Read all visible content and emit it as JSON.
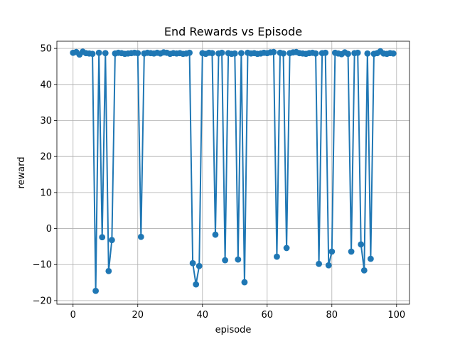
{
  "chart_data": {
    "type": "line",
    "title": "End Rewards vs Episode",
    "xlabel": "episode",
    "ylabel": "reward",
    "xlim": [
      -5,
      104
    ],
    "ylim": [
      -21,
      52
    ],
    "xticks": [
      0,
      20,
      40,
      60,
      80,
      100
    ],
    "yticks": [
      -20,
      -10,
      0,
      10,
      20,
      30,
      40,
      50
    ],
    "xtick_labels": [
      "0",
      "20",
      "40",
      "60",
      "80",
      "100"
    ],
    "ytick_labels": [
      "−20",
      "−10",
      "0",
      "10",
      "20",
      "30",
      "40",
      "50"
    ],
    "grid": true,
    "markers": true,
    "color": "#1f77b4",
    "series": [
      {
        "x": [
          0,
          1,
          2,
          3,
          4,
          5,
          6,
          7,
          8,
          9,
          10,
          11,
          12,
          13,
          14,
          15,
          16,
          17,
          18,
          19,
          20,
          21,
          22,
          23,
          24,
          25,
          26,
          27,
          28,
          29,
          30,
          31,
          32,
          33,
          34,
          35,
          36,
          37,
          38,
          39,
          40,
          41,
          42,
          43,
          44,
          45,
          46,
          47,
          48,
          49,
          50,
          51,
          52,
          53,
          54,
          55,
          56,
          57,
          58,
          59,
          60,
          61,
          62,
          63,
          64,
          65,
          66,
          67,
          68,
          69,
          70,
          71,
          72,
          73,
          74,
          75,
          76,
          77,
          78,
          79,
          80,
          81,
          82,
          83,
          84,
          85,
          86,
          87,
          88,
          89,
          90,
          91,
          92,
          93,
          94,
          95,
          96,
          97,
          98,
          99
        ],
        "y": [
          48.8,
          49.0,
          48.3,
          49.1,
          48.7,
          48.6,
          48.5,
          -17.3,
          48.8,
          -2.4,
          48.7,
          -11.8,
          -3.2,
          48.6,
          48.8,
          48.7,
          48.5,
          48.6,
          48.7,
          48.8,
          48.7,
          -2.3,
          48.6,
          48.8,
          48.7,
          48.6,
          48.8,
          48.6,
          48.9,
          48.8,
          48.5,
          48.7,
          48.6,
          48.7,
          48.5,
          48.6,
          48.8,
          -9.6,
          -15.5,
          -10.4,
          48.7,
          48.5,
          48.8,
          48.7,
          -1.7,
          48.6,
          48.8,
          -8.8,
          48.7,
          48.5,
          48.6,
          -8.6,
          48.7,
          -14.9,
          48.8,
          48.6,
          48.7,
          48.5,
          48.6,
          48.8,
          48.7,
          48.9,
          49.0,
          -7.8,
          48.8,
          48.6,
          -5.4,
          48.7,
          48.9,
          49.0,
          48.7,
          48.6,
          48.5,
          48.7,
          48.8,
          48.6,
          -9.8,
          48.7,
          48.8,
          -10.2,
          -6.4,
          48.8,
          48.6,
          48.4,
          48.9,
          48.5,
          -6.4,
          48.7,
          48.8,
          -4.4,
          -11.6,
          48.6,
          -8.4,
          48.5,
          48.7,
          49.2,
          48.6,
          48.5,
          48.7,
          48.6
        ]
      }
    ]
  }
}
